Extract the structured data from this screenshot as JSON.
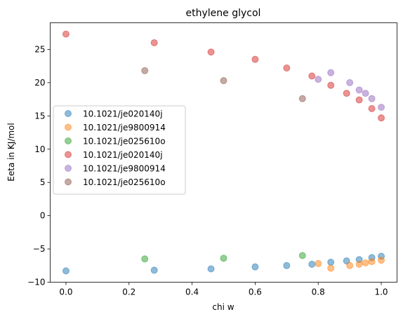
{
  "chart_data": {
    "type": "scatter",
    "title": "ethylene glycol",
    "xlabel": "chi w",
    "ylabel": "Eeta in KJ/mol",
    "xlim": [
      -0.05,
      1.05
    ],
    "ylim": [
      -10,
      29
    ],
    "xticks": [
      0.0,
      0.2,
      0.4,
      0.6,
      0.8,
      1.0
    ],
    "xtick_labels": [
      "0.0",
      "0.2",
      "0.4",
      "0.6",
      "0.8",
      "1.0"
    ],
    "yticks": [
      -10,
      -5,
      0,
      5,
      10,
      15,
      20,
      25
    ],
    "ytick_labels": [
      "−10",
      "−5",
      "0",
      "5",
      "10",
      "15",
      "20",
      "25"
    ],
    "grid": false,
    "legend_position": "center-left",
    "series": [
      {
        "name": "10.1021/je020140j",
        "color": "#1f77b4",
        "x": [
          0.0,
          0.28,
          0.46,
          0.6,
          0.7,
          0.78,
          0.84,
          0.89,
          0.93,
          0.97,
          1.0
        ],
        "y": [
          -8.3,
          -8.2,
          -8.0,
          -7.7,
          -7.5,
          -7.3,
          -7.0,
          -6.8,
          -6.6,
          -6.3,
          -6.1
        ]
      },
      {
        "name": "10.1021/je9800914",
        "color": "#ff7f0e",
        "x": [
          0.8,
          0.84,
          0.9,
          0.93,
          0.95,
          0.97,
          1.0
        ],
        "y": [
          -7.2,
          -7.9,
          -7.5,
          -7.3,
          -7.1,
          -6.9,
          -6.7
        ]
      },
      {
        "name": "10.1021/je025610o",
        "color": "#2ca02c",
        "x": [
          0.25,
          0.5,
          0.75
        ],
        "y": [
          -6.5,
          -6.4,
          -6.0
        ]
      },
      {
        "name": "10.1021/je020140j",
        "color": "#d62728",
        "x": [
          0.0,
          0.28,
          0.46,
          0.6,
          0.7,
          0.78,
          0.84,
          0.89,
          0.93,
          0.97,
          1.0
        ],
        "y": [
          27.3,
          26.0,
          24.6,
          23.5,
          22.2,
          21.0,
          19.6,
          18.4,
          17.4,
          16.1,
          14.7
        ]
      },
      {
        "name": "10.1021/je9800914",
        "color": "#9467bd",
        "x": [
          0.8,
          0.84,
          0.9,
          0.93,
          0.95,
          0.97,
          1.0
        ],
        "y": [
          20.5,
          21.5,
          20.0,
          18.9,
          18.4,
          17.6,
          16.3
        ]
      },
      {
        "name": "10.1021/je025610o",
        "color": "#8c564b",
        "x": [
          0.25,
          0.5,
          0.75
        ],
        "y": [
          21.8,
          20.3,
          17.6
        ]
      }
    ]
  }
}
